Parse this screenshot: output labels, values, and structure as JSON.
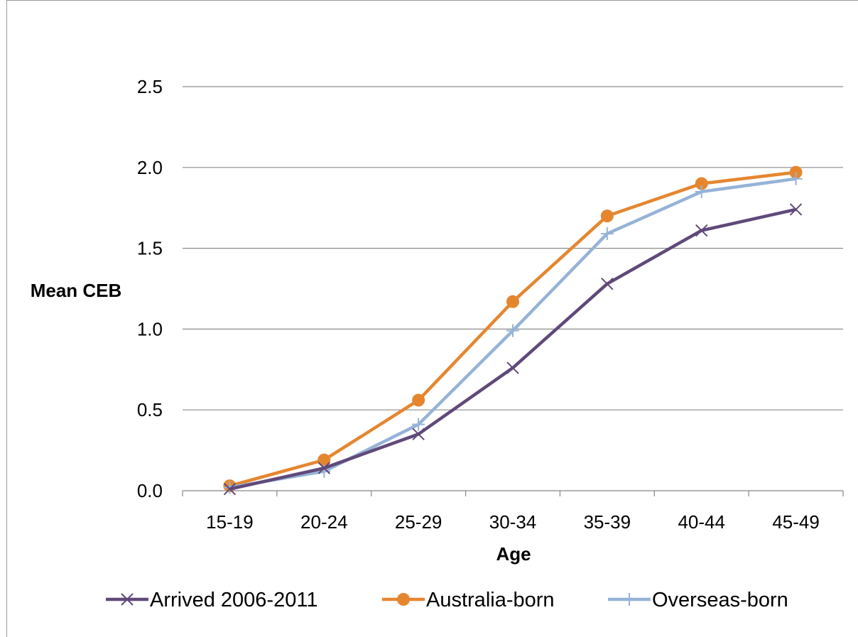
{
  "chart_data": {
    "type": "line",
    "title": "",
    "xlabel": "Age",
    "ylabel": "Mean CEB",
    "categories": [
      "15-19",
      "20-24",
      "25-29",
      "30-34",
      "35-39",
      "40-44",
      "45-49"
    ],
    "y_ticks": [
      "0.0",
      "0.5",
      "1.0",
      "1.5",
      "2.0",
      "2.5"
    ],
    "ylim": [
      0,
      2.5
    ],
    "grid": "horizontal",
    "legend_position": "bottom",
    "series": [
      {
        "name": "Arrived 2006-2011",
        "color": "#60497a",
        "marker": "x",
        "values": [
          0.01,
          0.14,
          0.35,
          0.76,
          1.28,
          1.61,
          1.74
        ]
      },
      {
        "name": "Australia-born",
        "color": "#e5862f",
        "marker": "circle",
        "values": [
          0.03,
          0.19,
          0.56,
          1.17,
          1.7,
          1.9,
          1.97
        ]
      },
      {
        "name": "Overseas-born",
        "color": "#95b3d7",
        "marker": "plus",
        "values": [
          0.02,
          0.12,
          0.41,
          0.99,
          1.59,
          1.85,
          1.93
        ]
      }
    ]
  }
}
